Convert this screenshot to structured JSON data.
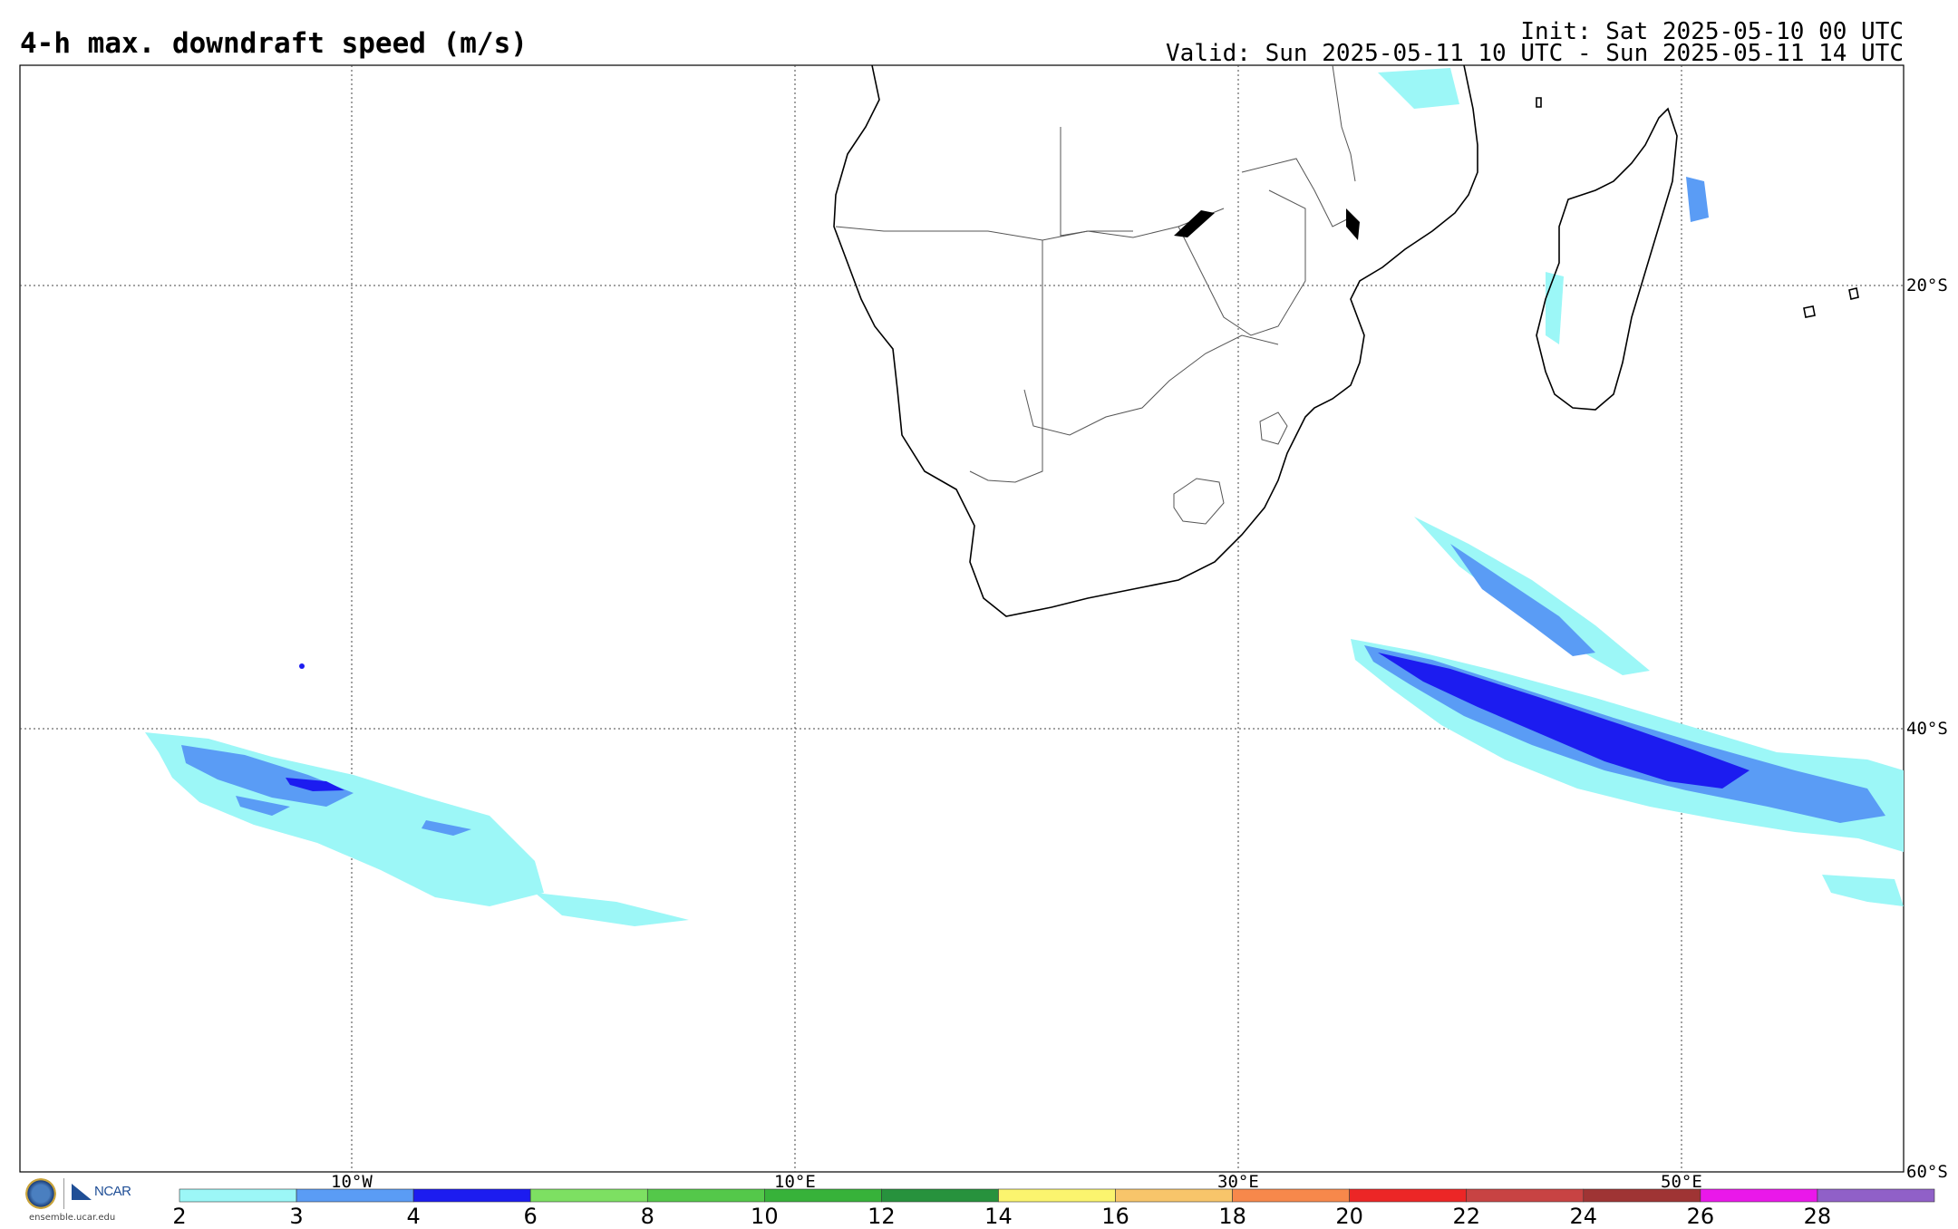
{
  "header": {
    "title": "4-h max. downdraft speed (m/s)",
    "init": "Init: Sat 2025-05-10 00 UTC",
    "valid": "Valid: Sun 2025-05-11 10 UTC - Sun 2025-05-11 14 UTC"
  },
  "axes": {
    "lat_labels": [
      "20°S",
      "40°S",
      "60°S"
    ],
    "lon_labels": [
      "10°W",
      "10°E",
      "30°E",
      "50°E"
    ]
  },
  "colorbar": {
    "ticks": [
      "2",
      "3",
      "4",
      "6",
      "8",
      "10",
      "12",
      "14",
      "16",
      "18",
      "20",
      "22",
      "24",
      "26",
      "28"
    ],
    "colors": [
      "#9cf7f7",
      "#5a9cf5",
      "#1c1cf0",
      "#7de062",
      "#54c84a",
      "#37b23a",
      "#27923d",
      "#fbf46e",
      "#f8c56a",
      "#f7884b",
      "#ec2626",
      "#c84343",
      "#9f3434",
      "#ea18ea",
      "#9060c8"
    ]
  },
  "footer": {
    "logo_text": "NCAR",
    "site": "ensemble.ucar.edu"
  },
  "map": {
    "region": "southern-africa-south-atlantic-south-indian",
    "shading_colors": {
      "light": "#9cf7f7",
      "medium": "#5a9cf5",
      "dark": "#1c1cf0"
    }
  }
}
